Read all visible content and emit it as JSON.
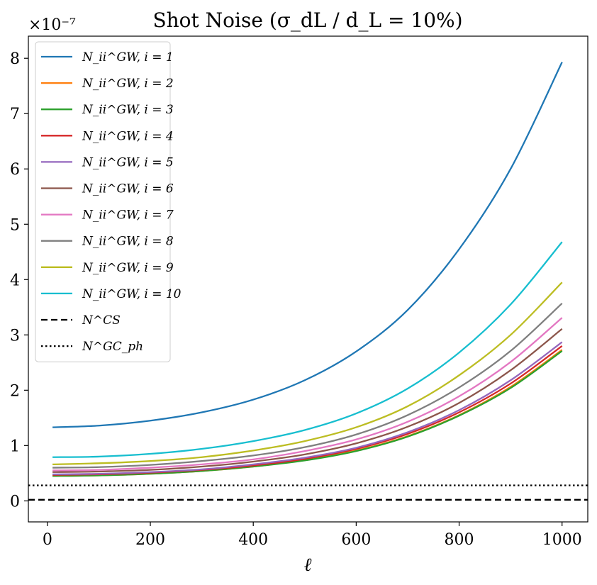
{
  "chart_data": {
    "type": "line",
    "title": "Shot Noise  (σ_dL / d_L = 10%)",
    "xlabel": "ℓ",
    "ylabel": "",
    "y_multiplier": "×10⁻⁷",
    "xlim": [
      -37,
      1050
    ],
    "ylim": [
      -0.38,
      8.4
    ],
    "xticks": [
      0,
      200,
      400,
      600,
      800,
      1000
    ],
    "yticks": [
      0,
      1,
      2,
      3,
      4,
      5,
      6,
      7,
      8
    ],
    "grid": false,
    "legend_position": "top-left",
    "x_samples": [
      10,
      100,
      200,
      300,
      400,
      500,
      600,
      700,
      800,
      900,
      1000
    ],
    "series": [
      {
        "name": "N_ii^GW, i = 1",
        "color": "#1f77b4",
        "style": "solid",
        "values": [
          1.33,
          1.36,
          1.45,
          1.6,
          1.83,
          2.18,
          2.7,
          3.45,
          4.55,
          6.0,
          7.93
        ]
      },
      {
        "name": "N_ii^GW, i = 2",
        "color": "#ff7f0e",
        "style": "solid",
        "values": [
          0.45,
          0.46,
          0.49,
          0.54,
          0.62,
          0.74,
          0.91,
          1.17,
          1.55,
          2.06,
          2.73
        ]
      },
      {
        "name": "N_ii^GW, i = 3",
        "color": "#2ca02c",
        "style": "solid",
        "values": [
          0.45,
          0.46,
          0.49,
          0.54,
          0.62,
          0.73,
          0.9,
          1.16,
          1.54,
          2.04,
          2.71
        ]
      },
      {
        "name": "N_ii^GW, i = 4",
        "color": "#d62728",
        "style": "solid",
        "values": [
          0.47,
          0.48,
          0.51,
          0.56,
          0.64,
          0.76,
          0.94,
          1.21,
          1.6,
          2.12,
          2.8
        ]
      },
      {
        "name": "N_ii^GW, i = 5",
        "color": "#9467bd",
        "style": "solid",
        "values": [
          0.48,
          0.49,
          0.52,
          0.57,
          0.66,
          0.78,
          0.96,
          1.24,
          1.64,
          2.18,
          2.87
        ]
      },
      {
        "name": "N_ii^GW, i = 6",
        "color": "#8c564b",
        "style": "solid",
        "values": [
          0.52,
          0.53,
          0.56,
          0.62,
          0.71,
          0.84,
          1.04,
          1.34,
          1.77,
          2.36,
          3.11
        ]
      },
      {
        "name": "N_ii^GW, i = 7",
        "color": "#e377c2",
        "style": "solid",
        "values": [
          0.55,
          0.56,
          0.6,
          0.66,
          0.75,
          0.9,
          1.11,
          1.43,
          1.89,
          2.51,
          3.31
        ]
      },
      {
        "name": "N_ii^GW, i = 8",
        "color": "#7f7f7f",
        "style": "solid",
        "values": [
          0.6,
          0.61,
          0.65,
          0.72,
          0.82,
          0.97,
          1.2,
          1.55,
          2.05,
          2.71,
          3.57
        ]
      },
      {
        "name": "N_ii^GW, i = 9",
        "color": "#bcbd22",
        "style": "solid",
        "values": [
          0.66,
          0.68,
          0.72,
          0.79,
          0.91,
          1.08,
          1.33,
          1.71,
          2.27,
          3.0,
          3.95
        ]
      },
      {
        "name": "N_ii^GW, i = 10",
        "color": "#17becf",
        "style": "solid",
        "values": [
          0.79,
          0.8,
          0.85,
          0.94,
          1.08,
          1.28,
          1.58,
          2.03,
          2.68,
          3.55,
          4.68
        ]
      },
      {
        "name": "N^CS",
        "color": "#000000",
        "style": "dashed",
        "constant": 0.02
      },
      {
        "name": "N^GC_ph",
        "color": "#000000",
        "style": "dotted",
        "constant": 0.28
      }
    ]
  }
}
